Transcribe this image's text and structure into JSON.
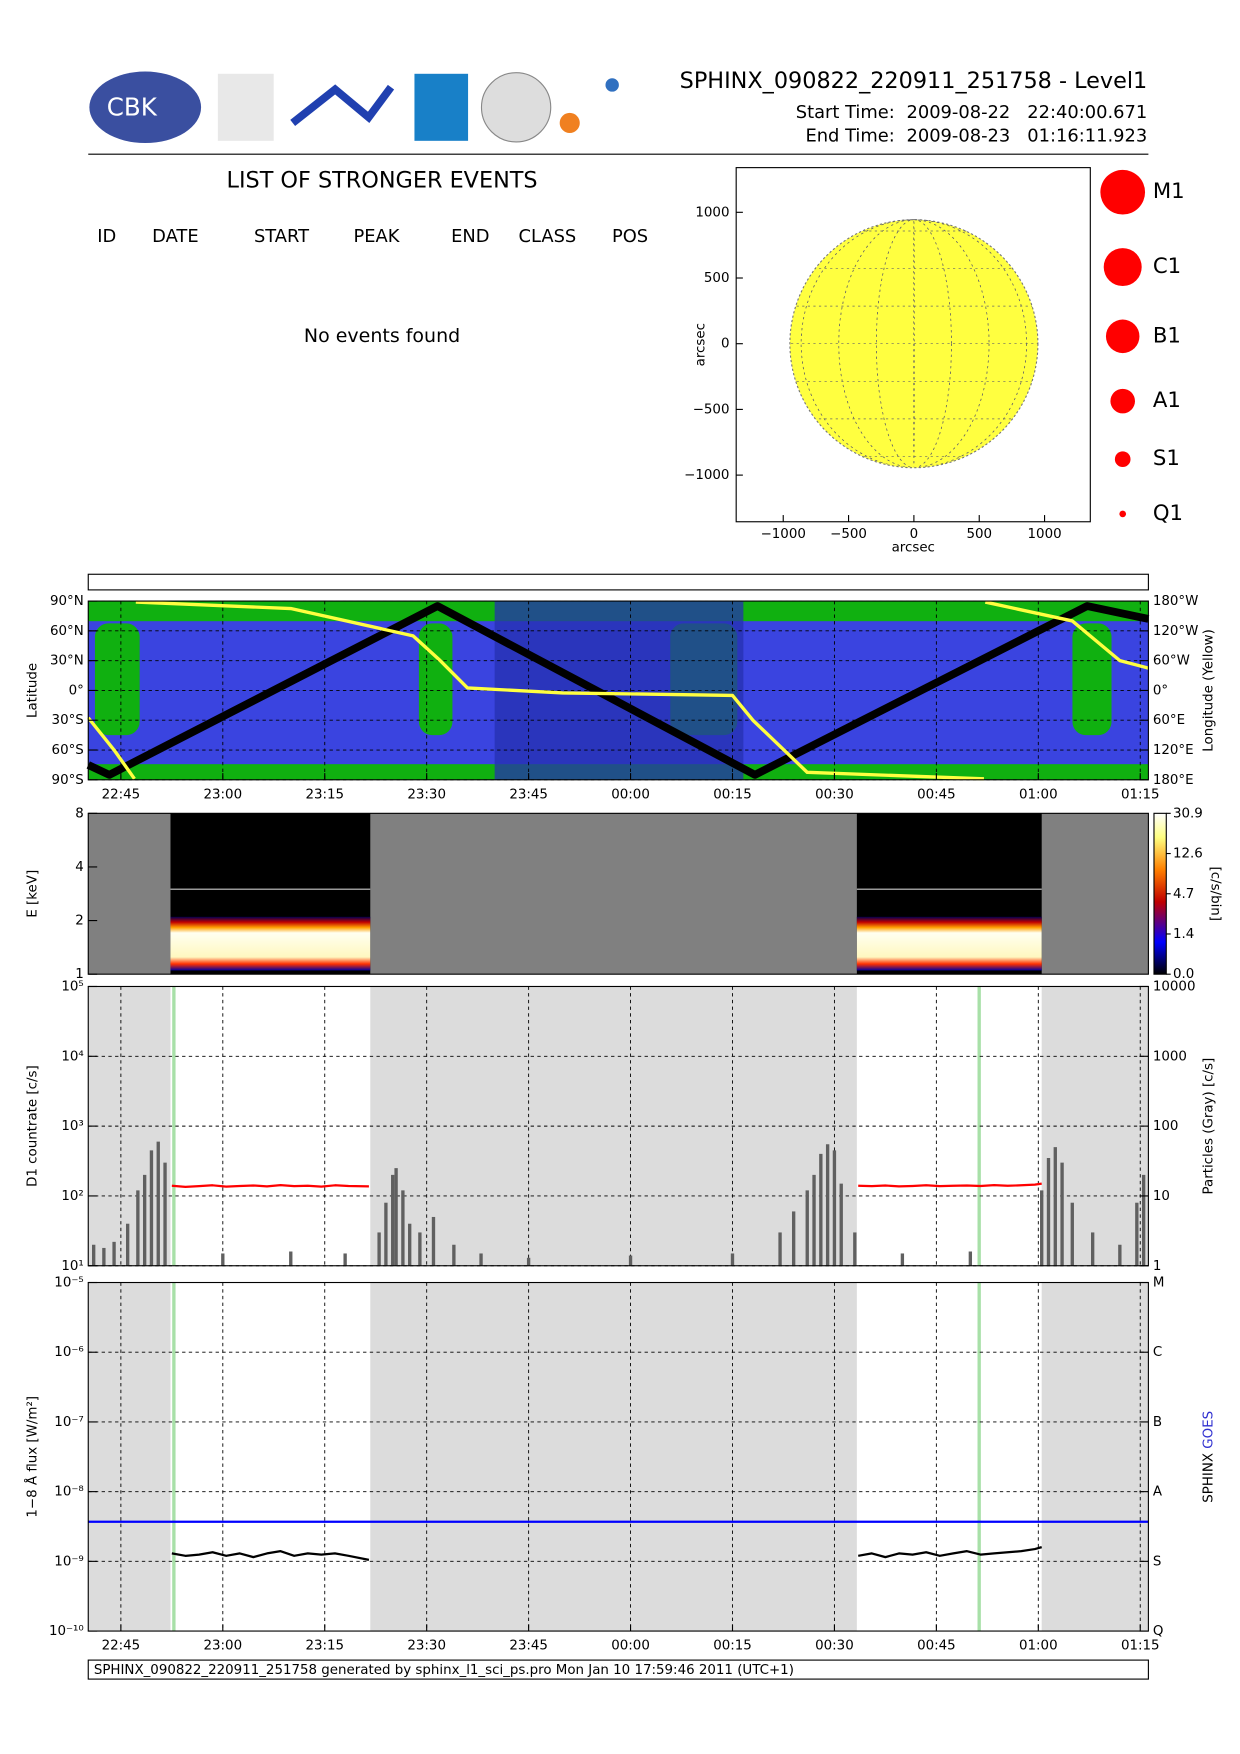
{
  "header": {
    "title": "SPHINX_090822_220911_251758 - Level1",
    "start_label": "Start Time:",
    "start_value": "2009-08-22   22:40:00.671",
    "end_label": "End Time:",
    "end_value": "2009-08-23   01:16:11.923",
    "logo_text": "CBK"
  },
  "events": {
    "title": "LIST OF STRONGER EVENTS",
    "columns": [
      "ID",
      "DATE",
      "START",
      "PEAK",
      "END",
      "CLASS",
      "POS"
    ],
    "message": "No events found"
  },
  "size_legend": [
    "M1",
    "C1",
    "B1",
    "A1",
    "S1",
    "Q1"
  ],
  "footer": "SPHINX_090822_220911_251758 generated by sphinx_l1_sci_ps.pro Mon Jan 10 17:59:46 2011 (UTC+1)",
  "chart_data": [
    {
      "type": "scatter",
      "xlabel": "arcsec",
      "ylabel": "arcsec",
      "xlim": [
        -1360,
        1350
      ],
      "ylim": [
        -1355,
        1340
      ],
      "xticks": [
        {
          "value": -1000,
          "label": "−1000"
        },
        {
          "value": -500,
          "label": "−500"
        },
        0,
        500,
        1000
      ],
      "yticks": [
        {
          "value": -1000,
          "label": "−1000"
        },
        {
          "value": -500,
          "label": "−500"
        },
        0,
        500,
        1000
      ],
      "color": "#ffff40"
    },
    {
      "type": "line",
      "ylabel": "Latitude",
      "y2label": "Longitude (Yellow)",
      "grid": true,
      "xlim": [
        1360.2,
        1516.2
      ],
      "ylim": [
        -90,
        90
      ],
      "yticks": [
        {
          "value": 90,
          "label": "90°N"
        },
        {
          "value": 60,
          "label": "60°N"
        },
        {
          "value": 30,
          "label": "30°N"
        },
        {
          "value": 0,
          "label": "0°"
        },
        {
          "value": -30,
          "label": "30°S"
        },
        {
          "value": -60,
          "label": "60°S"
        },
        {
          "value": -90,
          "label": "90°S"
        }
      ],
      "y2lim": [
        180,
        -180
      ],
      "y2ticks": [
        {
          "value": -180,
          "label": "180°W"
        },
        {
          "value": -120,
          "label": "120°W"
        },
        {
          "value": -60,
          "label": "60°W"
        },
        {
          "value": 0,
          "label": "0°"
        },
        {
          "value": 60,
          "label": "60°E"
        },
        {
          "value": 120,
          "label": "120°E"
        },
        {
          "value": 180,
          "label": "180°E"
        }
      ],
      "xticks": [
        {
          "value": 1365,
          "label": "22:45"
        },
        {
          "value": 1380,
          "label": "23:00"
        },
        {
          "value": 1395,
          "label": "23:15"
        },
        {
          "value": 1410,
          "label": "23:30"
        },
        {
          "value": 1425,
          "label": "23:45"
        },
        {
          "value": 1440,
          "label": "00:00"
        },
        {
          "value": 1455,
          "label": "00:15"
        },
        {
          "value": 1470,
          "label": "00:30"
        },
        {
          "value": 1485,
          "label": "00:45"
        },
        {
          "value": 1500,
          "label": "01:00"
        },
        {
          "value": 1515,
          "label": "01:15"
        }
      ],
      "shaded": [
        [
          1420,
          1456.6
        ]
      ],
      "shade_color": "#2630b0",
      "series": [
        {
          "color": "#000000",
          "x": [
            1360.2,
            1363.3,
            1411.6,
            1458.3,
            1507.2,
            1516.2
          ],
          "values": [
            -75,
            -85,
            85,
            -85,
            85,
            72
          ]
        },
        {
          "color": "#ffff40",
          "axis": "y2",
          "x": [
            1360.2,
            1364,
            1367,
            1367.1,
            1367.2,
            1390,
            1408,
            1412,
            1416,
            1430,
            1455,
            1458,
            1466,
            1492,
            1492.1,
            1492.2,
            1505,
            1512,
            1516.2
          ],
          "values": [
            55,
            120,
            178,
            null,
            -178,
            -165,
            -110,
            -60,
            -5,
            5,
            10,
            60,
            165,
            178,
            null,
            -178,
            -140,
            -60,
            -45
          ]
        }
      ]
    },
    {
      "type": "heatmap",
      "ylabel": "E [keV]",
      "xlim": [
        1360.2,
        1516.2
      ],
      "ylim": [
        1,
        8
      ],
      "log": true,
      "yticks": [
        1,
        2,
        4,
        8
      ],
      "data_intervals": [
        [
          1372.3,
          1401.7
        ],
        [
          1473.3,
          1500.5
        ]
      ],
      "colorbar": {
        "label": "[c/s/bin]",
        "ticks": [
          {
            "value": 0,
            "label": "0.0"
          },
          1.4,
          4.7,
          12.6,
          30.9
        ]
      }
    },
    {
      "type": "line",
      "ylabel": "D1 countrate [c/s]",
      "y2label": "Particles (Gray) [c/s]",
      "grid": true,
      "log": true,
      "xlim": [
        1360.2,
        1516.2
      ],
      "ylim": [
        10,
        100000
      ],
      "yticks": [
        {
          "value": 10,
          "label": "10¹"
        },
        {
          "value": 100,
          "label": "10²"
        },
        {
          "value": 1000,
          "label": "10³"
        },
        {
          "value": 10000,
          "label": "10⁴"
        },
        {
          "value": 100000,
          "label": "10⁵"
        }
      ],
      "y2lim": [
        1,
        10000
      ],
      "y2ticks": [
        1,
        10,
        100,
        1000,
        10000
      ],
      "shaded": [
        [
          1360.2,
          1372.3
        ],
        [
          1401.7,
          1473.3
        ],
        [
          1500.5,
          1516.2
        ]
      ],
      "shade_color": "#dcdcdc",
      "markers_x": [
        1372.8,
        1491.3
      ],
      "marker_color": "#a8e0a8",
      "series": [
        {
          "type": "bar",
          "axis": "y2",
          "color": "#606060",
          "x": [
            1361,
            1362.5,
            1364,
            1366,
            1367.5,
            1368.5,
            1369.5,
            1370.5,
            1371.5,
            1380,
            1390,
            1398,
            1403,
            1404,
            1405,
            1405.5,
            1406.5,
            1407.5,
            1409,
            1411,
            1414,
            1418,
            1425,
            1440,
            1455,
            1462,
            1464,
            1466,
            1467,
            1468,
            1469,
            1470,
            1471,
            1473,
            1480,
            1490,
            1500.5,
            1501.5,
            1502.5,
            1503.5,
            1505,
            1508,
            1512,
            1514.5,
            1515.5
          ],
          "values": [
            2,
            1.8,
            2.2,
            4,
            12,
            20,
            45,
            60,
            30,
            1.5,
            1.6,
            1.5,
            3,
            8,
            20,
            25,
            12,
            4,
            3,
            5,
            2,
            1.5,
            1.3,
            1.4,
            1.5,
            3,
            6,
            12,
            20,
            40,
            55,
            45,
            15,
            3,
            1.5,
            1.6,
            12,
            35,
            50,
            30,
            8,
            3,
            2,
            8,
            20
          ]
        },
        {
          "color": "#ff0000",
          "x": [
            1372.5,
            1374.5,
            1376.5,
            1378.5,
            1380.5,
            1382.5,
            1384.5,
            1386.5,
            1388.5,
            1390.5,
            1392.5,
            1394.5,
            1396.5,
            1398.5,
            1401.5,
            1437,
            1473.5,
            1475.5,
            1477.5,
            1479.5,
            1481.5,
            1483.5,
            1485.5,
            1487.5,
            1489.5,
            1491.5,
            1493.5,
            1495.5,
            1497.5,
            1499.5,
            1500.5
          ],
          "values": [
            140,
            135,
            138,
            142,
            136,
            139,
            141,
            137,
            143,
            138,
            140,
            136,
            142,
            139,
            137,
            null,
            140,
            138,
            141,
            137,
            139,
            142,
            138,
            140,
            141,
            139,
            143,
            140,
            142,
            145,
            150
          ]
        }
      ]
    },
    {
      "type": "line",
      "ylabel": "1−8 Å flux [W/m²]",
      "y2label": "SPHINX",
      "y2label2": "GOES",
      "y2label2_color": "#3030d0",
      "grid": true,
      "log": true,
      "xlim": [
        1360.2,
        1516.2
      ],
      "ylim": [
        1e-10,
        1e-05
      ],
      "yticks": [
        {
          "value": 1e-10,
          "label": "10⁻¹⁰"
        },
        {
          "value": 1e-09,
          "label": "10⁻⁹"
        },
        {
          "value": 1e-08,
          "label": "10⁻⁸"
        },
        {
          "value": 1e-07,
          "label": "10⁻⁷"
        },
        {
          "value": 1e-06,
          "label": "10⁻⁶"
        },
        {
          "value": 1e-05,
          "label": "10⁻⁵"
        }
      ],
      "y2lim": [
        1e-10,
        1e-05
      ],
      "y2ticks": [
        {
          "value": 1e-10,
          "label": "Q"
        },
        {
          "value": 1e-09,
          "label": "S"
        },
        {
          "value": 1e-08,
          "label": "A"
        },
        {
          "value": 1e-07,
          "label": "B"
        },
        {
          "value": 1e-06,
          "label": "C"
        },
        {
          "value": 1e-05,
          "label": "M"
        }
      ],
      "xticks": [
        {
          "value": 1365,
          "label": "22:45"
        },
        {
          "value": 1380,
          "label": "23:00"
        },
        {
          "value": 1395,
          "label": "23:15"
        },
        {
          "value": 1410,
          "label": "23:30"
        },
        {
          "value": 1425,
          "label": "23:45"
        },
        {
          "value": 1440,
          "label": "00:00"
        },
        {
          "value": 1455,
          "label": "00:15"
        },
        {
          "value": 1470,
          "label": "00:30"
        },
        {
          "value": 1485,
          "label": "00:45"
        },
        {
          "value": 1500,
          "label": "01:00"
        },
        {
          "value": 1515,
          "label": "01:15"
        }
      ],
      "shaded": [
        [
          1360.2,
          1372.3
        ],
        [
          1401.7,
          1473.3
        ],
        [
          1500.5,
          1516.2
        ]
      ],
      "shade_color": "#dcdcdc",
      "markers_x": [
        1372.8,
        1491.3
      ],
      "marker_color": "#a8e0a8",
      "series": [
        {
          "color": "#0000ff",
          "x": [
            1360.2,
            1516.2
          ],
          "values": [
            3.7e-09,
            3.7e-09
          ]
        },
        {
          "color": "#000000",
          "x": [
            1372.5,
            1374.5,
            1376.5,
            1378.5,
            1380.5,
            1382.5,
            1384.5,
            1386.5,
            1388.5,
            1390.5,
            1392.5,
            1394.5,
            1396.5,
            1398.5,
            1401.5,
            1437,
            1473.5,
            1475.5,
            1477.5,
            1479.5,
            1481.5,
            1483.5,
            1485.5,
            1487.5,
            1489.5,
            1491.5,
            1493.5,
            1495.5,
            1497.5,
            1499.5,
            1500.5
          ],
          "values": [
            1.3e-09,
            1.2e-09,
            1.25e-09,
            1.35e-09,
            1.2e-09,
            1.3e-09,
            1.15e-09,
            1.3e-09,
            1.4e-09,
            1.2e-09,
            1.3e-09,
            1.25e-09,
            1.3e-09,
            1.2e-09,
            1.05e-09,
            null,
            1.2e-09,
            1.3e-09,
            1.15e-09,
            1.3e-09,
            1.25e-09,
            1.35e-09,
            1.2e-09,
            1.3e-09,
            1.4e-09,
            1.25e-09,
            1.3e-09,
            1.35e-09,
            1.4e-09,
            1.5e-09,
            1.6e-09
          ]
        }
      ]
    }
  ]
}
